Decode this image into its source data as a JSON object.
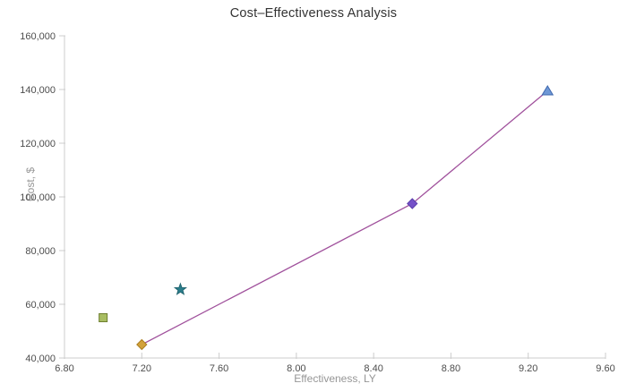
{
  "chart": {
    "title": "Cost–Effectiveness Analysis",
    "xlabel": "Effectiveness, LY",
    "ylabel": "Cost, $"
  },
  "chart_data": {
    "type": "scatter",
    "title": "Cost–Effectiveness Analysis",
    "xlabel": "Effectiveness, LY",
    "ylabel": "Cost, $",
    "xlim": [
      6.8,
      9.6
    ],
    "ylim": [
      40000,
      160000
    ],
    "grid": false,
    "legend": "none",
    "x_ticks": [
      {
        "v": 6.8,
        "label": "6.80"
      },
      {
        "v": 7.2,
        "label": "7.20"
      },
      {
        "v": 7.6,
        "label": "7.60"
      },
      {
        "v": 8.0,
        "label": "8.00"
      },
      {
        "v": 8.4,
        "label": "8.40"
      },
      {
        "v": 8.8,
        "label": "8.80"
      },
      {
        "v": 9.2,
        "label": "9.20"
      },
      {
        "v": 9.6,
        "label": "9.60"
      }
    ],
    "y_ticks": [
      {
        "v": 40000,
        "label": "40,000"
      },
      {
        "v": 60000,
        "label": "60,000"
      },
      {
        "v": 80000,
        "label": "80,000"
      },
      {
        "v": 100000,
        "label": "100,000"
      },
      {
        "v": 120000,
        "label": "120,000"
      },
      {
        "v": 140000,
        "label": "140,000"
      },
      {
        "v": 160000,
        "label": "160,000"
      }
    ],
    "points": [
      {
        "id": "square-green",
        "marker": "square",
        "x": 7.0,
        "y": 55000,
        "fill": "#a8bd62",
        "stroke": "#6e7f2f",
        "on_frontier": false
      },
      {
        "id": "diamond-gold",
        "marker": "diamond",
        "x": 7.2,
        "y": 45000,
        "fill": "#d2a23b",
        "stroke": "#ab7d1f",
        "on_frontier": true
      },
      {
        "id": "star-teal",
        "marker": "star",
        "x": 7.4,
        "y": 65500,
        "fill": "#2b7e8c",
        "stroke": "#226671",
        "on_frontier": false
      },
      {
        "id": "diamond-purple",
        "marker": "diamond",
        "x": 8.6,
        "y": 97500,
        "fill": "#7551c8",
        "stroke": "#5b3dab",
        "on_frontier": true
      },
      {
        "id": "triangle-blue",
        "marker": "triangle",
        "x": 9.3,
        "y": 139500,
        "fill": "#6f98d6",
        "stroke": "#3f68ae",
        "on_frontier": true
      }
    ],
    "frontier_line": {
      "color": "#a0519c",
      "x": [
        7.2,
        8.6,
        9.3
      ],
      "y": [
        45000,
        97500,
        139500
      ]
    },
    "colors": {
      "axis": "#cccccc",
      "tick_label": "#4d4d4d",
      "axis_title": "#969696",
      "title": "#333333",
      "background": "#ffffff"
    }
  }
}
